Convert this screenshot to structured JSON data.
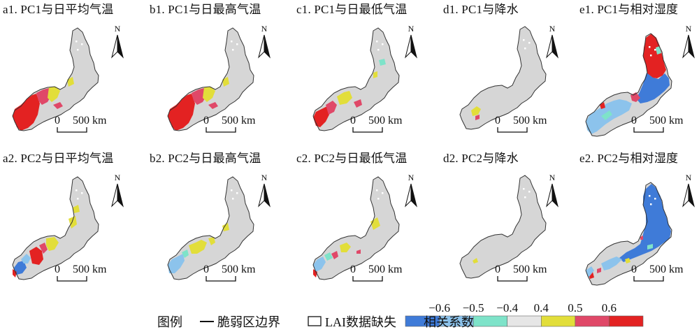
{
  "panels": [
    {
      "id": "a1",
      "title": "a1. PC1与日平均气温",
      "pattern": "pc1_temp_strong"
    },
    {
      "id": "b1",
      "title": "b1. PC1与日最高气温",
      "pattern": "pc1_temp_strong"
    },
    {
      "id": "c1",
      "title": "c1. PC1与日最低气温",
      "pattern": "pc1_tmin"
    },
    {
      "id": "d1",
      "title": "d1. PC1与降水",
      "pattern": "pc1_prec"
    },
    {
      "id": "e1",
      "title": "e1. PC1与相对湿度",
      "pattern": "pc1_rh"
    },
    {
      "id": "a2",
      "title": "a2. PC2与日平均气温",
      "pattern": "pc2_temp"
    },
    {
      "id": "b2",
      "title": "b2. PC2与日最高气温",
      "pattern": "pc2_tmax"
    },
    {
      "id": "c2",
      "title": "c2. PC2与日最低气温",
      "pattern": "pc2_tmin"
    },
    {
      "id": "d2",
      "title": "d2. PC2与降水",
      "pattern": "pc2_prec"
    },
    {
      "id": "e2",
      "title": "e2. PC2与相对湿度",
      "pattern": "pc2_rh"
    }
  ],
  "scale_bar": {
    "start": "0",
    "end": "500 km"
  },
  "north_label": "N",
  "legend": {
    "title": "图例",
    "boundary_label": "脆弱区边界",
    "missing_label": "LAI数据缺失",
    "corr_label": "相关系数",
    "ticks": [
      "−0.6",
      "−0.5",
      "−0.4",
      "0.4",
      "0.5",
      "0.6"
    ],
    "colors": [
      "#3f7bd8",
      "#8cc3ec",
      "#7ee3c9",
      "#e6e6e6",
      "#e2de3a",
      "#e04868",
      "#e32222"
    ]
  },
  "colors": {
    "land": "#d6d6d6",
    "outline": "#333333",
    "neg_strong": "#3f7bd8",
    "neg_mid": "#8cc3ec",
    "neg_weak": "#7ee3c9",
    "pos_weak": "#e2de3a",
    "pos_mid": "#e04868",
    "pos_strong": "#e32222"
  }
}
